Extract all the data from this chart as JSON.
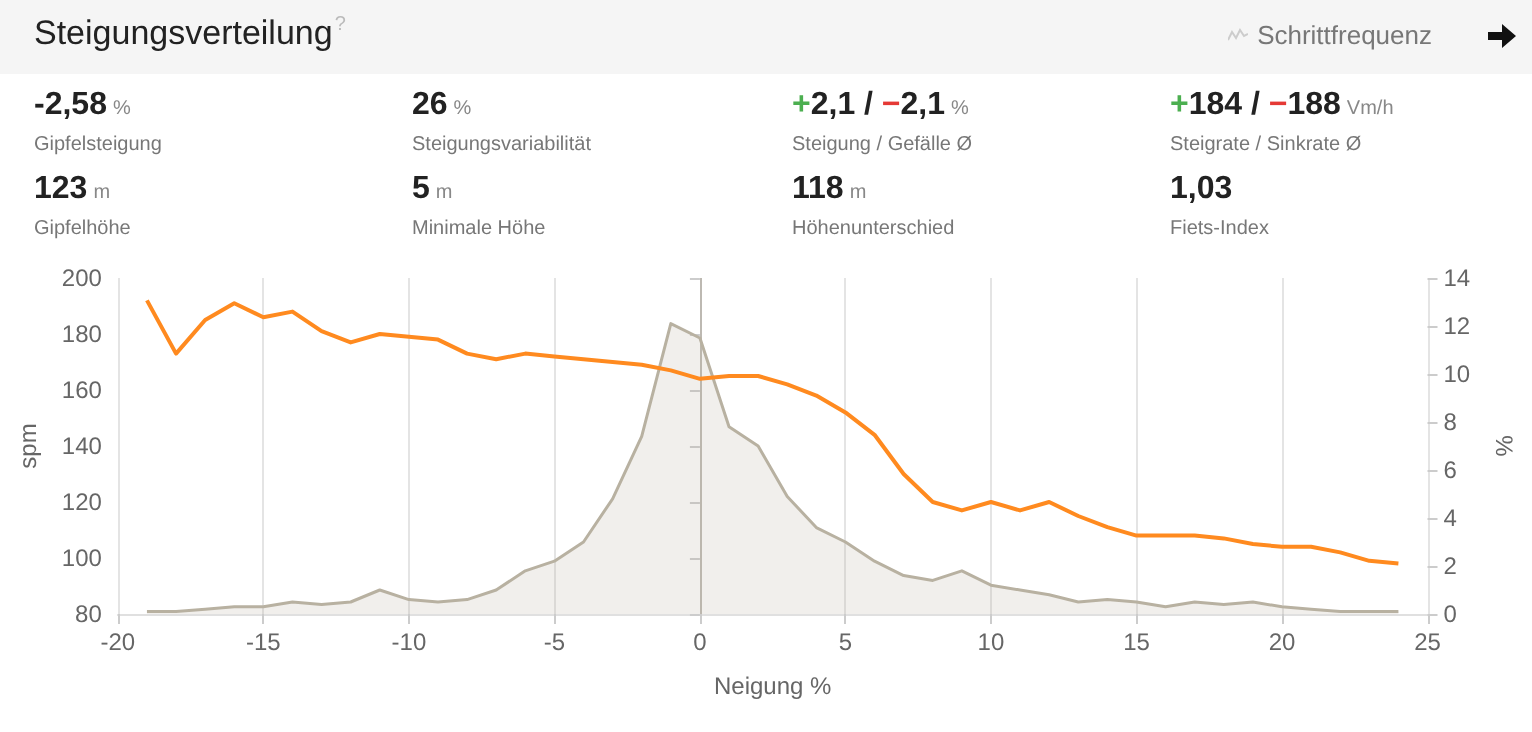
{
  "chart_data": [
    {
      "type": "other",
      "title": "Steigungsverteilung$^{?}$",
      "annotations": [
        "Schrittfrequenz",
        "-2,58 %",
        "Gipfelsteigung",
        "26 %",
        "Steigungsvariabilität",
        "+2,1 / −2,1 %",
        "Steigung / Gefälle Ø",
        "+184 / −188 Vm/h",
        "Steigrate / Sinkrate Ø",
        "123 m",
        "Gipfelhöhe",
        "5 m",
        "Minimale Höhe",
        "118 m",
        "Höhenunterschied",
        "1,03",
        "Fiets-Index"
      ]
    },
    {
      "type": "line",
      "xlabel": "Neigung %",
      "ylabel": "spm",
      "y2label": "%",
      "x": [
        -19,
        -18,
        -17,
        -16,
        -15,
        -14,
        -13,
        -12,
        -11,
        -10,
        -9,
        -8,
        -7,
        -6,
        -5,
        -4,
        -3,
        -2,
        -1,
        0,
        1,
        2,
        3,
        4,
        5,
        6,
        7,
        8,
        9,
        10,
        11,
        12,
        13,
        14,
        15,
        16,
        17,
        18,
        19,
        20,
        21,
        22,
        23,
        24
      ],
      "series": [
        {
          "type": "line",
          "color": "#ff8a1f",
          "values": [
            192,
            173,
            185,
            191,
            186,
            188,
            181,
            177,
            180,
            179,
            178,
            173,
            171,
            173,
            172,
            171,
            170,
            169,
            167,
            164,
            165,
            165,
            162,
            158,
            152,
            144,
            130,
            120,
            117,
            120,
            117,
            120,
            115,
            111,
            108,
            108,
            108,
            107,
            105,
            104,
            104,
            102,
            99,
            98
          ]
        },
        {
          "type": "area",
          "axis": "y2",
          "color": "#b8b1a1",
          "values": [
            0.1,
            0.1,
            0.2,
            0.3,
            0.3,
            0.5,
            0.4,
            0.5,
            1.0,
            0.6,
            0.5,
            0.6,
            1.0,
            1.8,
            2.2,
            3.0,
            4.8,
            7.4,
            12.1,
            11.5,
            7.8,
            7.0,
            4.9,
            3.6,
            3.0,
            2.2,
            1.6,
            1.4,
            1.8,
            1.2,
            1.0,
            0.8,
            0.5,
            0.6,
            0.5,
            0.3,
            0.5,
            0.4,
            0.5,
            0.3,
            0.2,
            0.1,
            0.1,
            0.1
          ]
        }
      ],
      "xlim": [
        -20,
        25
      ],
      "xticks": [
        -20,
        -15,
        -10,
        -5,
        0,
        5,
        10,
        15,
        20,
        25
      ],
      "ylim": [
        80,
        200
      ],
      "yticks": [
        80,
        100,
        120,
        140,
        160,
        180,
        200
      ],
      "y2lim": [
        0,
        14
      ],
      "y2ticks": [
        0,
        2,
        4,
        6,
        8,
        10,
        12,
        14
      ],
      "ref_lines": [
        {
          "axis": "x",
          "value": 0,
          "color": "#bdb9b2"
        }
      ],
      "grid": "x",
      "marker": "none"
    }
  ]
}
